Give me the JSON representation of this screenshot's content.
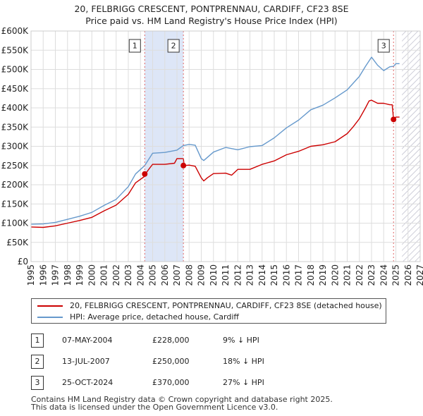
{
  "title": {
    "line1": "20, FELBRIGG CRESCENT, PONTPRENNAU, CARDIFF, CF23 8SE",
    "line2": "Price paid vs. HM Land Registry's House Price Index (HPI)"
  },
  "chart_data": {
    "type": "line",
    "title": "20, FELBRIGG CRESCENT, PONTPRENNAU, CARDIFF, CF23 8SE — Price paid vs. HM Land Registry's House Price Index (HPI)",
    "xlabel": "",
    "ylabel": "",
    "xlim": [
      1995,
      2027
    ],
    "ylim": [
      0,
      600000
    ],
    "x_ticks": [
      "1995",
      "1996",
      "1997",
      "1998",
      "1999",
      "2000",
      "2001",
      "2002",
      "2003",
      "2004",
      "2005",
      "2006",
      "2007",
      "2008",
      "2009",
      "2010",
      "2011",
      "2012",
      "2013",
      "2014",
      "2015",
      "2016",
      "2017",
      "2018",
      "2019",
      "2020",
      "2021",
      "2022",
      "2023",
      "2024",
      "2025",
      "2026",
      "2027"
    ],
    "y_ticks": [
      "£0",
      "£50K",
      "£100K",
      "£150K",
      "£200K",
      "£250K",
      "£300K",
      "£350K",
      "£400K",
      "£450K",
      "£500K",
      "£550K",
      "£600K"
    ],
    "grid": true,
    "colors": {
      "property": "#cc0000",
      "hpi": "#6699cc",
      "shade": "#dde6f7",
      "marker_line": "#e06666"
    },
    "series": [
      {
        "name": "20, FELBRIGG CRESCENT, PONTPRENNAU, CARDIFF, CF23 8SE (detached house)",
        "x": [
          1995,
          1996,
          1997,
          1998,
          1999,
          2000,
          2001,
          2002,
          2003,
          2003.6,
          2004.35,
          2004.4,
          2004.8,
          2005,
          2006,
          2006.8,
          2007.0,
          2007.53,
          2007.6,
          2008,
          2008.5,
          2009,
          2009.2,
          2009.5,
          2010,
          2011,
          2011.5,
          2012,
          2013,
          2014,
          2015,
          2016,
          2017,
          2018,
          2019,
          2020,
          2021,
          2021.5,
          2022,
          2022.5,
          2022.8,
          2023,
          2023.5,
          2024,
          2024.5,
          2024.7,
          2024.81,
          2024.9,
          2025,
          2025.3
        ],
        "y": [
          90000,
          89000,
          93000,
          100000,
          107000,
          115000,
          132000,
          147000,
          175000,
          205000,
          222000,
          228000,
          245000,
          253000,
          253000,
          256000,
          268000,
          268000,
          250000,
          251000,
          248000,
          218000,
          210000,
          218000,
          229000,
          230000,
          225000,
          240000,
          240000,
          253000,
          262000,
          278000,
          287000,
          300000,
          304000,
          312000,
          333000,
          351000,
          372000,
          400000,
          418000,
          420000,
          412000,
          412000,
          408000,
          408000,
          370000,
          373000,
          376000,
          376000
        ]
      },
      {
        "name": "HPI: Average price, detached house, Cardiff",
        "x": [
          1995,
          1996,
          1997,
          1998,
          1999,
          2000,
          2001,
          2002,
          2003,
          2003.6,
          2004.35,
          2004.8,
          2005,
          2006,
          2007,
          2007.53,
          2008,
          2008.5,
          2009,
          2009.2,
          2010,
          2011,
          2012,
          2013,
          2014,
          2015,
          2016,
          2017,
          2018,
          2019,
          2020,
          2021,
          2022,
          2022.5,
          2023,
          2023.5,
          2024,
          2024.5,
          2024.81,
          2025,
          2025.3
        ],
        "y": [
          97000,
          98000,
          102000,
          110000,
          118000,
          128000,
          146000,
          162000,
          195000,
          228000,
          250000,
          272000,
          282000,
          284000,
          290000,
          302000,
          305000,
          303000,
          268000,
          263000,
          285000,
          297000,
          291000,
          299000,
          302000,
          322000,
          348000,
          368000,
          395000,
          407000,
          426000,
          447000,
          482000,
          508000,
          532000,
          511000,
          497000,
          507000,
          508000,
          515000,
          515000
        ]
      }
    ],
    "markers": [
      {
        "label": "1",
        "x": 2004.35,
        "y": 228000
      },
      {
        "label": "2",
        "x": 2007.53,
        "y": 250000
      },
      {
        "label": "3",
        "x": 2024.81,
        "y": 370000
      }
    ],
    "shaded_span": [
      2004.35,
      2007.53
    ],
    "hatched_from": 2025.5
  },
  "legend": {
    "property_label": "20, FELBRIGG CRESCENT, PONTPRENNAU, CARDIFF, CF23 8SE (detached house)",
    "hpi_label": "HPI: Average price, detached house, Cardiff"
  },
  "sales": [
    {
      "num": "1",
      "date": "07-MAY-2004",
      "price": "£228,000",
      "hpi": "9% ↓ HPI"
    },
    {
      "num": "2",
      "date": "13-JUL-2007",
      "price": "£250,000",
      "hpi": "18% ↓ HPI"
    },
    {
      "num": "3",
      "date": "25-OCT-2024",
      "price": "£370,000",
      "hpi": "27% ↓ HPI"
    }
  ],
  "footer": {
    "line1": "Contains HM Land Registry data © Crown copyright and database right 2025.",
    "line2": "This data is licensed under the Open Government Licence v3.0."
  }
}
